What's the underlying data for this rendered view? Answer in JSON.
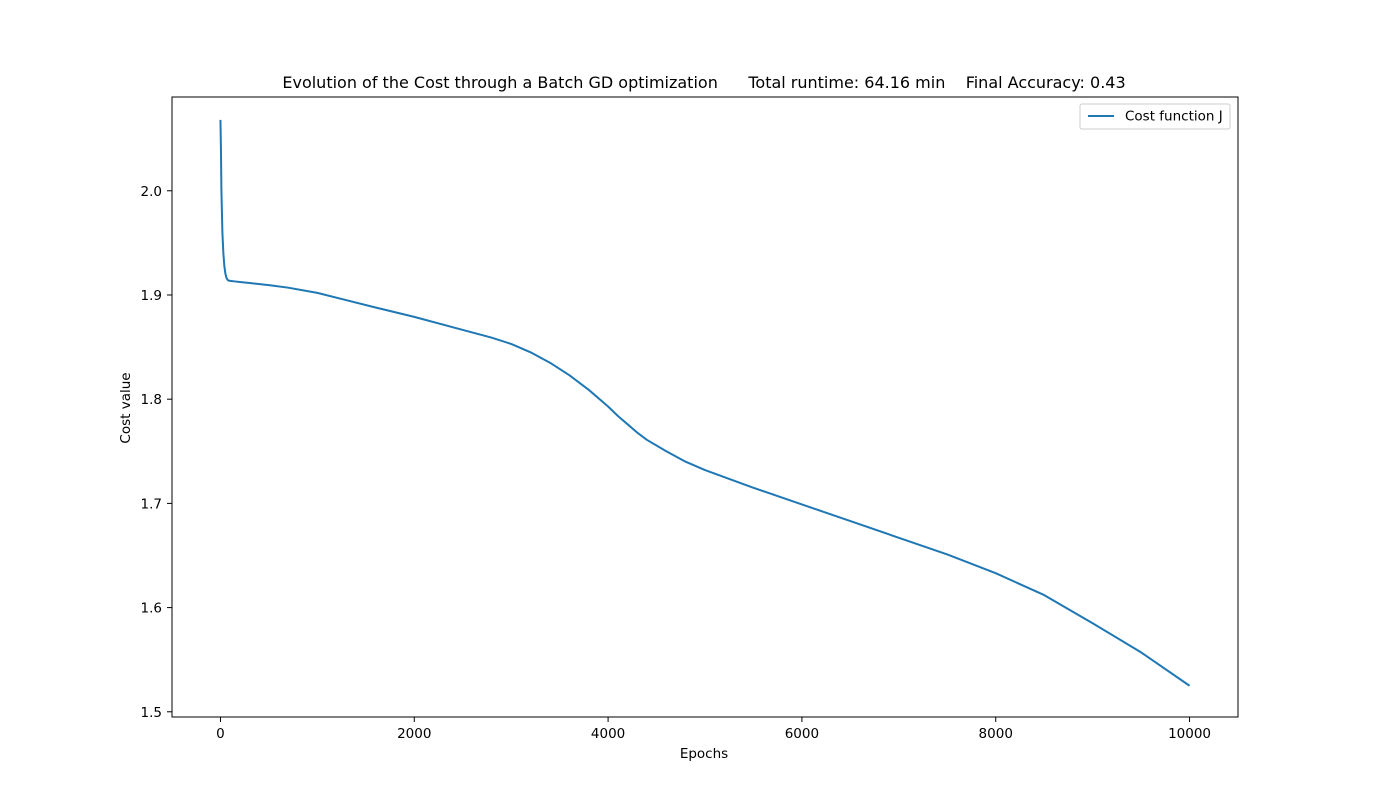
{
  "chart_data": {
    "type": "line",
    "title": "Evolution of the Cost through a Batch GD optimization      Total runtime: 64.16 min    Final Accuracy: 0.43",
    "xlabel": "Epochs",
    "ylabel": "Cost value",
    "xlim": [
      -500,
      10500
    ],
    "ylim": [
      1.495,
      2.09
    ],
    "xticks": [
      0,
      2000,
      4000,
      6000,
      8000,
      10000
    ],
    "xtick_labels": [
      "0",
      "2000",
      "4000",
      "6000",
      "8000",
      "10000"
    ],
    "yticks": [
      1.5,
      1.6,
      1.7,
      1.8,
      1.9,
      2.0
    ],
    "ytick_labels": [
      "1.5",
      "1.6",
      "1.7",
      "1.8",
      "1.9",
      "2.0"
    ],
    "grid": false,
    "legend_position": "top-right",
    "series": [
      {
        "name": "Cost function J",
        "color": "#1f77b4",
        "x": [
          0,
          5,
          10,
          20,
          30,
          40,
          50,
          60,
          70,
          80,
          100,
          150,
          200,
          300,
          500,
          700,
          1000,
          1300,
          1600,
          2000,
          2400,
          2800,
          3000,
          3200,
          3400,
          3600,
          3800,
          4000,
          4100,
          4200,
          4300,
          4400,
          4600,
          4800,
          5000,
          5500,
          6000,
          6500,
          7000,
          7500,
          8000,
          8500,
          9000,
          9500,
          10000
        ],
        "values": [
          2.068,
          2.04,
          2.0,
          1.96,
          1.94,
          1.928,
          1.921,
          1.917,
          1.915,
          1.914,
          1.9135,
          1.913,
          1.9125,
          1.9115,
          1.9095,
          1.907,
          1.902,
          1.895,
          1.888,
          1.879,
          1.869,
          1.859,
          1.853,
          1.845,
          1.835,
          1.823,
          1.809,
          1.793,
          1.784,
          1.776,
          1.768,
          1.761,
          1.75,
          1.74,
          1.732,
          1.715,
          1.699,
          1.683,
          1.667,
          1.651,
          1.633,
          1.612,
          1.585,
          1.557,
          1.525
        ]
      }
    ]
  }
}
